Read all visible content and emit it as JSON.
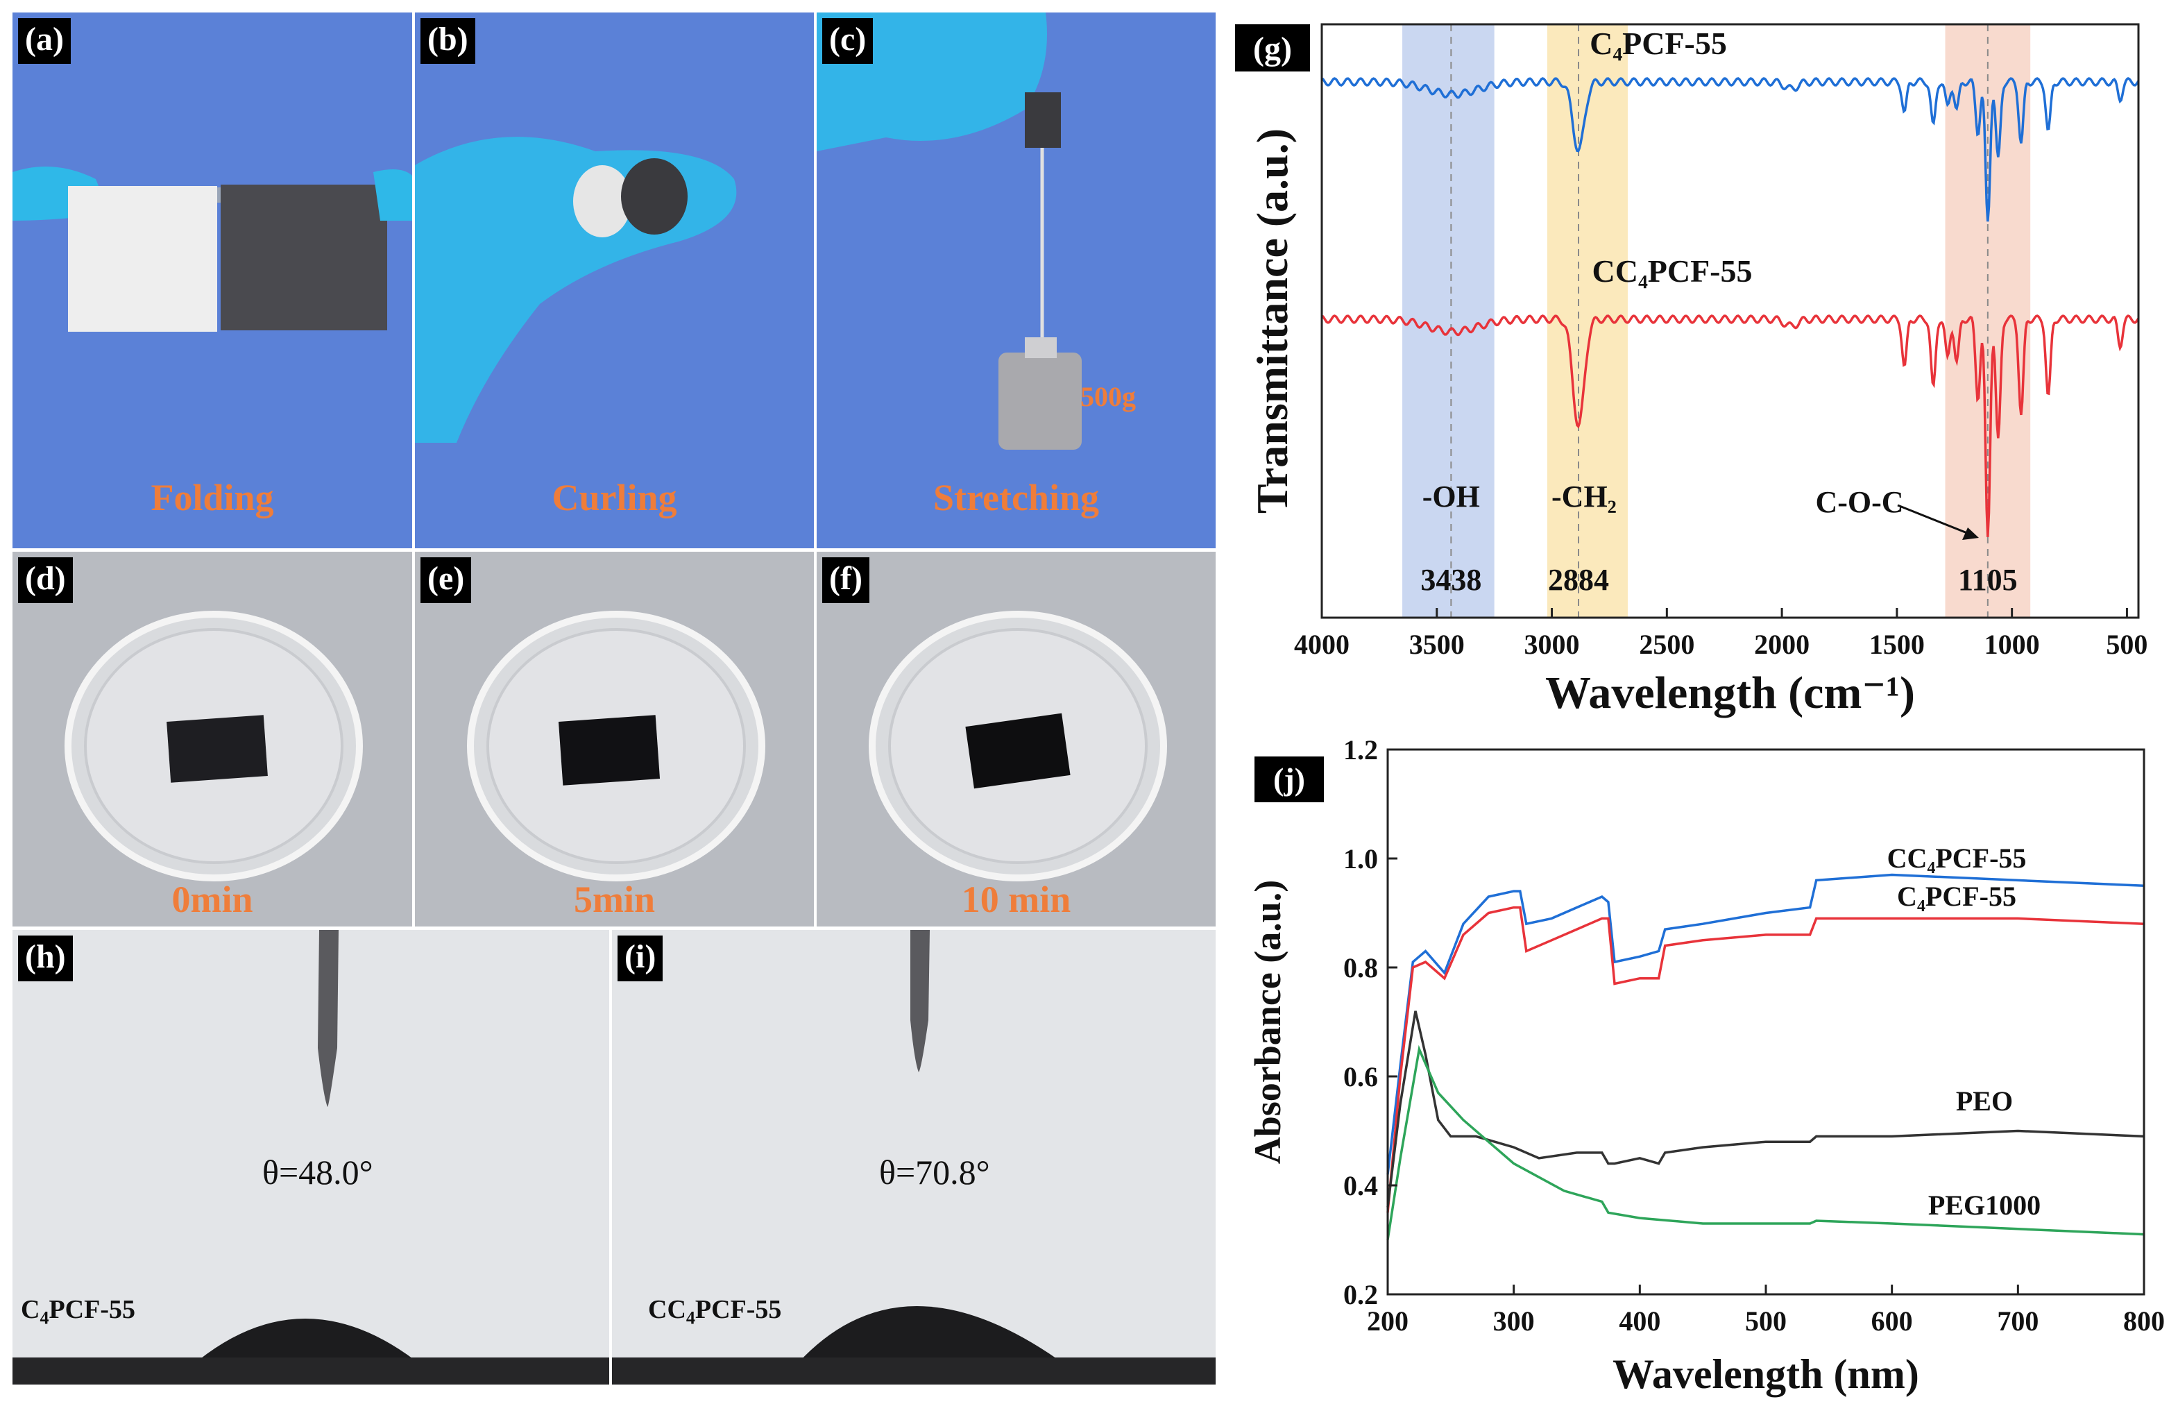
{
  "photos": {
    "a": {
      "tag": "(a)",
      "caption": "Folding"
    },
    "b": {
      "tag": "(b)",
      "caption": "Curling"
    },
    "c": {
      "tag": "(c)",
      "caption": "Stretching",
      "weight": "500g"
    },
    "d": {
      "tag": "(d)",
      "caption": "0min"
    },
    "e": {
      "tag": "(e)",
      "caption": "5min"
    },
    "f": {
      "tag": "(f)",
      "caption": "10 min"
    },
    "h": {
      "tag": "(h)",
      "angle": "θ=48.0°",
      "sample_pre": "C",
      "sample_sub": "4",
      "sample_post": "PCF-55"
    },
    "i": {
      "tag": "(i)",
      "angle": "θ=70.8°",
      "sample_pre": "CC",
      "sample_sub": "4",
      "sample_post": "PCF-55"
    }
  },
  "chart_data": [
    {
      "panel": "(g)",
      "type": "line",
      "xlabel": "Wavelength (cm⁻¹)",
      "ylabel": "Transmittance (a.u.)",
      "xlim": [
        4000,
        450
      ],
      "xticks": [
        4000,
        3500,
        3000,
        2500,
        2000,
        1500,
        1000,
        500
      ],
      "series": [
        {
          "name": "C₄PCF-55",
          "color": "#1f6fd6"
        },
        {
          "name": "CC₄PCF-55",
          "color": "#e8333a"
        }
      ],
      "bands": [
        {
          "range": [
            3650,
            3250
          ],
          "label": "-OH",
          "value": "3438",
          "color": "#b8c9ec"
        },
        {
          "range": [
            3020,
            2670
          ],
          "label": "-CH₂",
          "value": "2884",
          "color": "#f9e2a6"
        },
        {
          "range": [
            1290,
            920
          ],
          "label": "C-O-C",
          "value": "1105",
          "color": "#f6cdbd"
        }
      ]
    },
    {
      "panel": "(j)",
      "type": "line",
      "xlabel": "Wavelength (nm)",
      "ylabel": "Absorbance (a.u.)",
      "xlim": [
        200,
        800
      ],
      "ylim": [
        0.2,
        1.2
      ],
      "xticks": [
        200,
        300,
        400,
        500,
        600,
        700,
        800
      ],
      "yticks": [
        "0.2",
        "0.4",
        "0.6",
        "0.8",
        "1.0",
        "1.2"
      ],
      "series": [
        {
          "name": "CC₄PCF-55",
          "color": "#1f6fd6",
          "x": [
            200,
            210,
            220,
            230,
            245,
            260,
            280,
            300,
            305,
            310,
            330,
            350,
            370,
            375,
            380,
            400,
            415,
            420,
            450,
            500,
            535,
            540,
            600,
            700,
            800
          ],
          "y": [
            0.42,
            0.62,
            0.81,
            0.83,
            0.79,
            0.88,
            0.93,
            0.94,
            0.94,
            0.88,
            0.89,
            0.91,
            0.93,
            0.92,
            0.81,
            0.82,
            0.83,
            0.87,
            0.88,
            0.9,
            0.91,
            0.96,
            0.97,
            0.96,
            0.95
          ]
        },
        {
          "name": "C₄PCF-55",
          "color": "#e8333a",
          "x": [
            200,
            210,
            220,
            230,
            245,
            260,
            280,
            300,
            305,
            310,
            330,
            350,
            370,
            375,
            380,
            400,
            415,
            420,
            450,
            500,
            535,
            540,
            600,
            700,
            800
          ],
          "y": [
            0.35,
            0.6,
            0.8,
            0.81,
            0.78,
            0.86,
            0.9,
            0.91,
            0.91,
            0.83,
            0.85,
            0.87,
            0.89,
            0.89,
            0.77,
            0.78,
            0.78,
            0.84,
            0.85,
            0.86,
            0.86,
            0.89,
            0.89,
            0.89,
            0.88
          ]
        },
        {
          "name": "PEO",
          "color": "#333333",
          "x": [
            200,
            210,
            222,
            230,
            240,
            250,
            270,
            300,
            320,
            350,
            370,
            375,
            380,
            400,
            415,
            420,
            450,
            500,
            535,
            540,
            600,
            700,
            800
          ],
          "y": [
            0.36,
            0.55,
            0.72,
            0.64,
            0.52,
            0.49,
            0.49,
            0.47,
            0.45,
            0.46,
            0.46,
            0.44,
            0.44,
            0.45,
            0.44,
            0.46,
            0.47,
            0.48,
            0.48,
            0.49,
            0.49,
            0.5,
            0.49
          ]
        },
        {
          "name": "PEG1000",
          "color": "#2ea55a",
          "x": [
            200,
            210,
            225,
            240,
            260,
            300,
            340,
            370,
            375,
            400,
            450,
            500,
            535,
            540,
            600,
            700,
            800
          ],
          "y": [
            0.3,
            0.45,
            0.65,
            0.57,
            0.52,
            0.44,
            0.39,
            0.37,
            0.35,
            0.34,
            0.33,
            0.33,
            0.33,
            0.335,
            0.33,
            0.32,
            0.31
          ]
        }
      ]
    }
  ]
}
